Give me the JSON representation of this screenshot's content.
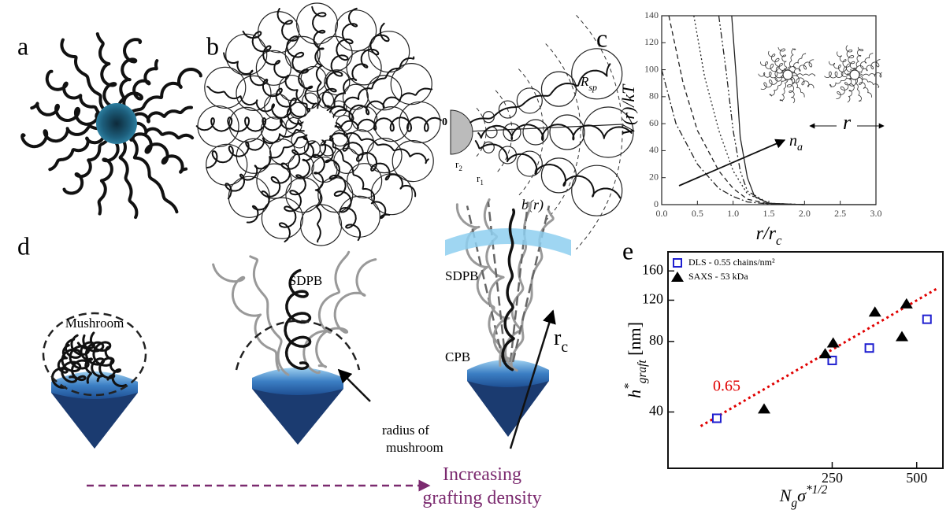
{
  "panel_labels": [
    "a",
    "b",
    "c",
    "d",
    "e"
  ],
  "panel_b": {
    "origin": "0",
    "r2": "r",
    "r2_sub": "2",
    "r1": "r",
    "r1_sub": "1",
    "b_r": "b(r)",
    "r_sp": "R",
    "r_sp_sub": "sp"
  },
  "panel_d": {
    "mushroom": "Mushroom",
    "sdpb_1": "SDPB",
    "sdpb_2": "SDPB",
    "cpb": "CPB",
    "rc": "r",
    "rc_sub": "c",
    "radius": [
      "radius of",
      "mushroom"
    ],
    "increasing": [
      "Increasing",
      "grafting density"
    ]
  },
  "chart_data": [
    {
      "type": "line",
      "xlabel": {
        "base": "r/r",
        "sub": "c"
      },
      "ylabel": "V(r)/kT",
      "annotations": {
        "n": "n",
        "n_sub": "a",
        "r": "r"
      },
      "xlim": [
        0,
        3
      ],
      "xticks": [
        {
          "value": 0,
          "label": "0.0"
        },
        {
          "value": 0.5,
          "label": "0.5"
        },
        {
          "value": 1,
          "label": "1.0"
        },
        {
          "value": 1.5,
          "label": "1.5"
        },
        {
          "value": 2,
          "label": "2.0"
        },
        {
          "value": 2.5,
          "label": "2.5"
        },
        {
          "value": 3,
          "label": "3.0"
        }
      ],
      "ylim": [
        0,
        140
      ],
      "yticks": [
        0,
        20,
        40,
        60,
        80,
        100,
        120,
        140
      ],
      "series": [
        {
          "color": "#222222",
          "dash": "8 3 2 3",
          "x": [
            0,
            0.2,
            0.5,
            0.8,
            1.0,
            1.2,
            1.5,
            2.0
          ],
          "values": [
            100,
            60,
            30,
            12,
            6,
            2,
            0.5,
            0
          ]
        },
        {
          "color": "#222222",
          "dash": "6 4",
          "x": [
            0.1,
            0.3,
            0.5,
            0.8,
            1.0,
            1.2,
            1.5,
            2.0
          ],
          "values": [
            140,
            90,
            55,
            25,
            12,
            4,
            0.5,
            0
          ]
        },
        {
          "color": "#222222",
          "dash": "2 3",
          "x": [
            0.45,
            0.6,
            0.8,
            1.0,
            1.2,
            1.5,
            2.0
          ],
          "values": [
            140,
            95,
            55,
            25,
            8,
            1,
            0
          ]
        },
        {
          "color": "#222222",
          "dash": "8 3 2 3 2 3",
          "x": [
            0.8,
            0.9,
            1.0,
            1.1,
            1.2,
            1.5,
            2.0
          ],
          "values": [
            140,
            100,
            55,
            25,
            10,
            1,
            0
          ]
        },
        {
          "color": "#222222",
          "x": [
            0.98,
            1.05,
            1.1,
            1.2,
            1.3,
            1.5,
            2.0,
            3.0
          ],
          "values": [
            140,
            90,
            50,
            20,
            6,
            1,
            0,
            0
          ]
        }
      ]
    },
    {
      "type": "scatter",
      "xlabel": {
        "base": "N",
        "sub": "g",
        "rest": "σ",
        "sup": "*1/2"
      },
      "ylabel": {
        "base": "h",
        "sup": "*",
        "sub": "graft",
        "unit": " [nm]"
      },
      "log_x": true,
      "log_y": true,
      "xlim": [
        65,
        620
      ],
      "xticks": [
        250,
        500
      ],
      "ylim": [
        23,
        193
      ],
      "yticks": [
        40,
        80,
        120,
        160
      ],
      "legend": "upper left",
      "series": [
        {
          "name": "DLS - 0.55 chains/nm²",
          "color": "#1f1fd0",
          "marker": "square",
          "x": [
            97,
            250,
            339,
            544
          ],
          "values": [
            37.6,
            66.4,
            75,
            99.5
          ]
        },
        {
          "name": "SAXS - 53 kDa",
          "color": "#000000",
          "marker": "triangle",
          "x": [
            143,
            236,
            252,
            355,
            443,
            460
          ],
          "values": [
            41.3,
            71,
            79,
            107,
            84,
            116
          ]
        }
      ],
      "fit": {
        "color": "#e00000",
        "x": [
          85,
          600
        ],
        "values": [
          34.8,
          136
        ],
        "label": "0.65"
      }
    }
  ]
}
